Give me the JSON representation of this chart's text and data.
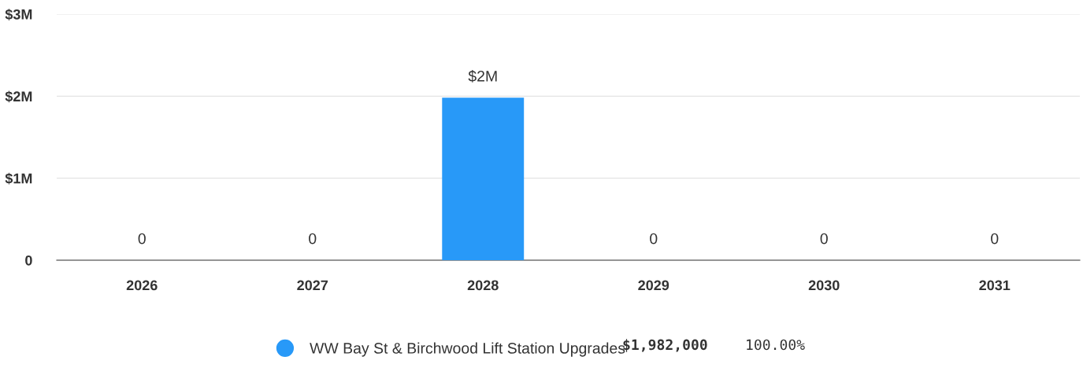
{
  "chart_data": {
    "type": "bar",
    "categories": [
      "2026",
      "2027",
      "2028",
      "2029",
      "2030",
      "2031"
    ],
    "series": [
      {
        "name": "WW Bay St & Birchwood Lift Station Upgrades",
        "color": "#2899f8",
        "values": [
          0,
          0,
          1982000,
          0,
          0,
          0
        ],
        "value_labels": [
          "0",
          "0",
          "$2M",
          "0",
          "0",
          "0"
        ]
      }
    ],
    "ylim": [
      0,
      3000000
    ],
    "yticks": [
      {
        "value": 0,
        "label": "0"
      },
      {
        "value": 1000000,
        "label": "$1M"
      },
      {
        "value": 2000000,
        "label": "$2M"
      },
      {
        "value": 3000000,
        "label": "$3M"
      }
    ],
    "grid": "y",
    "legend": "bottom",
    "annotations": [
      "$1,982,000",
      "100.00%"
    ]
  }
}
